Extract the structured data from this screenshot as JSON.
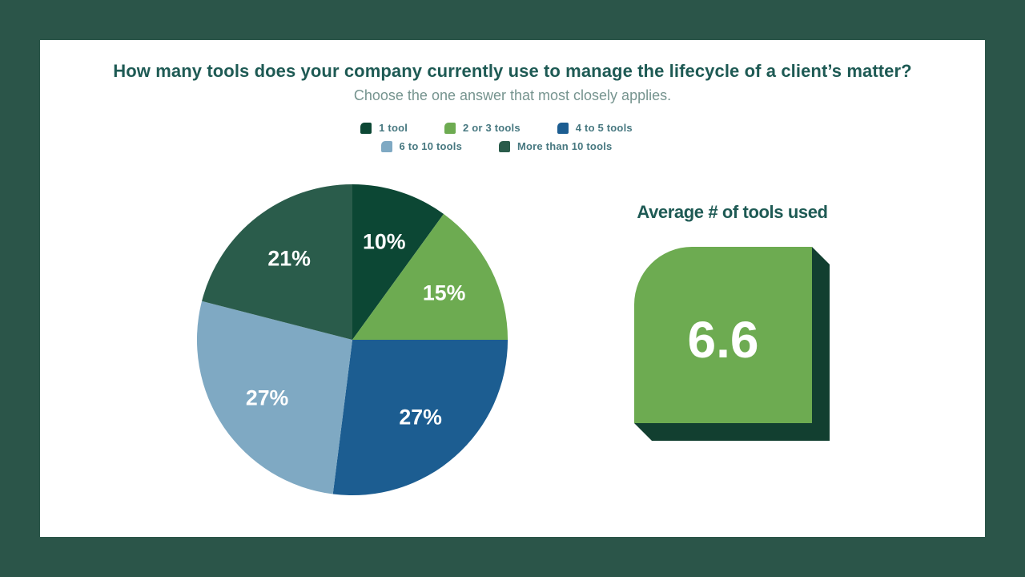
{
  "frame": {
    "background": "#2b5549",
    "panel_background": "#ffffff"
  },
  "header": {
    "title": "How many tools does your company currently use to manage the lifecycle of a client’s matter?",
    "subtitle": "Choose the one answer that most closely applies.",
    "title_color": "#1e5a54",
    "subtitle_color": "#76948f"
  },
  "legend": {
    "text_color": "#477880",
    "items": [
      {
        "label": "1 tool",
        "color": "#0c4734"
      },
      {
        "label": "2 or 3 tools",
        "color": "#6dab51"
      },
      {
        "label": "4 to 5 tools",
        "color": "#1c5d91"
      },
      {
        "label": "6 to 10 tools",
        "color": "#7fa9c3"
      },
      {
        "label": "More than 10 tools",
        "color": "#2a5c4b"
      }
    ]
  },
  "chart_data": {
    "type": "pie",
    "title": "How many tools does your company currently use to manage the lifecycle of a client’s matter?",
    "subtitle": "Choose the one answer that most closely applies.",
    "categories": [
      "1 tool",
      "2 or 3 tools",
      "4 to 5 tools",
      "6 to 10 tools",
      "More than 10 tools"
    ],
    "values": [
      10,
      15,
      27,
      27,
      21
    ],
    "labels": [
      "10%",
      "15%",
      "27%",
      "27%",
      "21%"
    ],
    "colors": [
      "#0c4734",
      "#6dab51",
      "#1c5d91",
      "#7fa9c3",
      "#2a5c4b"
    ],
    "start_angle_deg": 0,
    "direction": "clockwise",
    "label_color": "#ffffff",
    "legend_position": "top"
  },
  "average_panel": {
    "heading": "Average # of tools used",
    "value": "6.6",
    "heading_color": "#1e5a54",
    "card_color": "#6dab51",
    "shadow_color": "#123f30",
    "value_color": "#ffffff"
  }
}
